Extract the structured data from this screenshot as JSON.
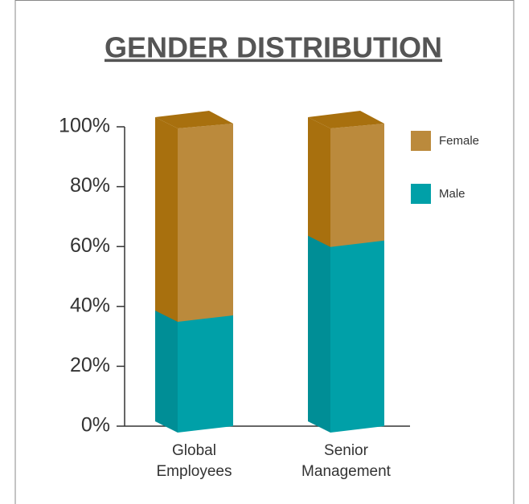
{
  "chart_data": {
    "type": "bar3d_stacked",
    "title": "GENDER DISTRIBUTION",
    "categories": [
      "Global Employees",
      "Senior Management"
    ],
    "series": [
      {
        "name": "Male",
        "color": "#00a0a8",
        "side_color": "#008e96",
        "values": [
          37,
          62
        ]
      },
      {
        "name": "Female",
        "color": "#bb8a3c",
        "side_color": "#a8700e",
        "values": [
          63,
          38
        ]
      }
    ],
    "ylim": [
      0,
      100
    ],
    "yticks": [
      {
        "value": 0,
        "label": "0%"
      },
      {
        "value": 20,
        "label": "20%"
      },
      {
        "value": 40,
        "label": "40%"
      },
      {
        "value": 60,
        "label": "60%"
      },
      {
        "value": 80,
        "label": "80%"
      },
      {
        "value": 100,
        "label": "100%"
      }
    ],
    "legend": "right"
  }
}
